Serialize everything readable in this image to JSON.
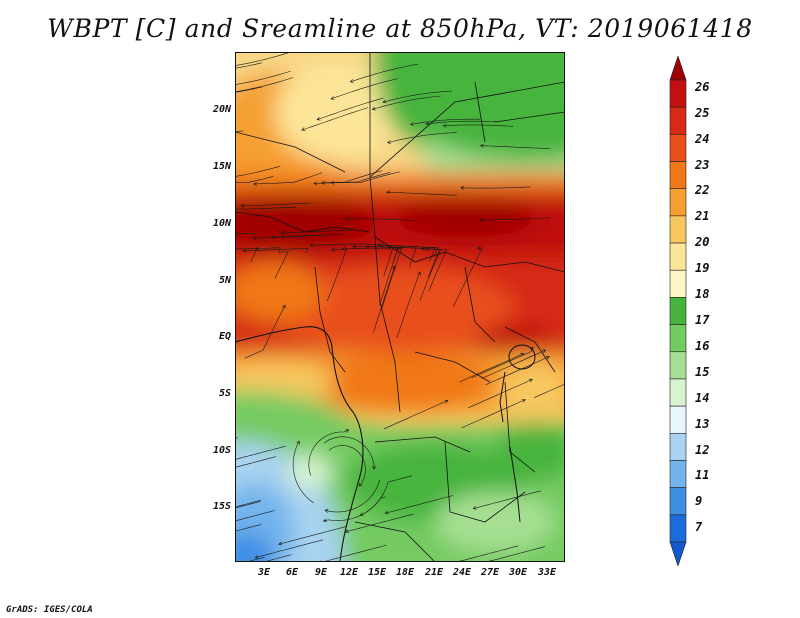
{
  "title": "WBPT [C] and Sreamline at 850hPa, VT: 2019061418",
  "credit": "GrADS: IGES/COLA",
  "map": {
    "variable": "Wet-bulb potential temperature",
    "units": "C",
    "level": "850hPa",
    "lat_range": [
      -21,
      24
    ],
    "lon_range": [
      0,
      35
    ],
    "y_ticks": [
      "20N",
      "15N",
      "10N",
      "5N",
      "EQ",
      "5S",
      "10S",
      "15S"
    ],
    "x_ticks": [
      "3E",
      "6E",
      "9E",
      "12E",
      "15E",
      "18E",
      "21E",
      "24E",
      "27E",
      "30E",
      "33E"
    ]
  },
  "colorbar": {
    "labels": [
      "26",
      "25",
      "24",
      "23",
      "22",
      "21",
      "20",
      "19",
      "18",
      "17",
      "16",
      "15",
      "14",
      "13",
      "12",
      "11",
      "9",
      "7"
    ],
    "colors": [
      "#a00000",
      "#c01010",
      "#d62a14",
      "#e8501a",
      "#f07818",
      "#f5a030",
      "#f8c860",
      "#fce598",
      "#fbf6c4",
      "#46b43c",
      "#74cb62",
      "#a6df92",
      "#d7f3cf",
      "#e9f6fb",
      "#a9d3f1",
      "#73b4ec",
      "#3f8ee4",
      "#1a6cd8",
      "#1456cc"
    ]
  }
}
